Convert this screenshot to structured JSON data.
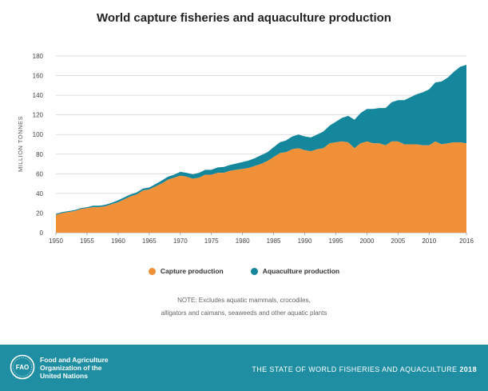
{
  "header": {
    "title": "World capture fisheries and aquaculture production"
  },
  "legend": {
    "capture_label": "Capture production",
    "aquaculture_label": "Aquaculture production"
  },
  "note": {
    "line1": "NOTE: Excludes aquatic mammals, crocodiles,",
    "line2": "alligators and caimans, seaweeds and other aquatic plants"
  },
  "footer": {
    "org_line1": "Food and Agriculture",
    "org_line2": "Organization of the",
    "org_line3": "United Nations",
    "logo_text": "FAO",
    "publication": "THE STATE OF WORLD FISHERIES AND AQUACULTURE",
    "year": "2018"
  },
  "colors": {
    "capture": "#f0913a",
    "aquaculture": "#15879c",
    "footer_bg": "#1f8ea3"
  },
  "chart_data": {
    "type": "area",
    "stacked": true,
    "title": "World capture fisheries and aquaculture production",
    "xlabel": "",
    "ylabel": "MILLION TONNES",
    "xlim": [
      1950,
      2016
    ],
    "ylim": [
      0,
      180
    ],
    "yticks": [
      0,
      20,
      40,
      60,
      80,
      100,
      120,
      140,
      160,
      180
    ],
    "xticks": [
      1950,
      1955,
      1960,
      1965,
      1970,
      1975,
      1980,
      1985,
      1990,
      1995,
      2000,
      2005,
      2010,
      2016
    ],
    "grid": "horizontal",
    "legend_position": "bottom",
    "x": [
      1950,
      1951,
      1952,
      1953,
      1954,
      1955,
      1956,
      1957,
      1958,
      1959,
      1960,
      1961,
      1962,
      1963,
      1964,
      1965,
      1966,
      1967,
      1968,
      1969,
      1970,
      1971,
      1972,
      1973,
      1974,
      1975,
      1976,
      1977,
      1978,
      1979,
      1980,
      1981,
      1982,
      1983,
      1984,
      1985,
      1986,
      1987,
      1988,
      1989,
      1990,
      1991,
      1992,
      1993,
      1994,
      1995,
      1996,
      1997,
      1998,
      1999,
      2000,
      2001,
      2002,
      2003,
      2004,
      2005,
      2006,
      2007,
      2008,
      2009,
      2010,
      2011,
      2012,
      2013,
      2014,
      2015,
      2016
    ],
    "series": [
      {
        "name": "Capture production",
        "values": [
          18,
          20,
          21,
          22,
          24,
          25,
          26,
          26,
          27,
          29,
          31,
          34,
          37,
          39,
          43,
          44,
          47,
          50,
          54,
          56,
          58,
          57,
          55,
          56,
          59,
          59,
          61,
          61,
          63,
          64,
          65,
          66,
          68,
          70,
          73,
          77,
          81,
          82,
          85,
          86,
          84,
          83,
          85,
          86,
          91,
          92,
          93,
          92,
          86,
          91,
          93,
          91,
          91,
          89,
          93,
          93,
          90,
          90,
          90,
          89,
          89,
          93,
          90,
          91,
          92,
          92,
          91
        ]
      },
      {
        "name": "Aquaculture production",
        "values": [
          1,
          1,
          1,
          1,
          1,
          1,
          1.5,
          1.5,
          1.5,
          1.5,
          2,
          2,
          2,
          2,
          2,
          2,
          2.5,
          3,
          3,
          3,
          4,
          4,
          4.5,
          5,
          5,
          5,
          5.5,
          6,
          6,
          6.5,
          7,
          7.5,
          8,
          9,
          9,
          10,
          11,
          12,
          13,
          14,
          14,
          14,
          15,
          17,
          18,
          21,
          24,
          27,
          29,
          31,
          33,
          35,
          36,
          38,
          40,
          42,
          45,
          48,
          51,
          54,
          57,
          60,
          64,
          67,
          72,
          77,
          80
        ]
      }
    ]
  }
}
